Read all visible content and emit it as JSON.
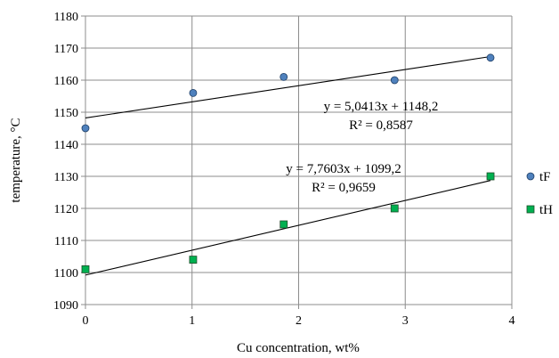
{
  "chart_data": {
    "type": "scatter",
    "title": "",
    "xlabel": "Cu concentration,  wt%",
    "ylabel": "temperature, °C",
    "xlim": [
      0,
      4
    ],
    "ylim": [
      1090,
      1180
    ],
    "x_ticks": [
      0,
      1,
      2,
      3,
      4
    ],
    "y_ticks": [
      1090,
      1100,
      1110,
      1120,
      1130,
      1140,
      1150,
      1160,
      1170,
      1180
    ],
    "x_tick_labels": [
      "0",
      "1",
      "2",
      "3",
      "4"
    ],
    "y_tick_labels": [
      "1090",
      "1100",
      "1110",
      "1120",
      "1130",
      "1140",
      "1150",
      "1160",
      "1170",
      "1180"
    ],
    "grid": true,
    "legend_position": "right",
    "series": [
      {
        "name": "tF",
        "marker": "circle",
        "color": "#4f81bd",
        "points": [
          {
            "x": 0,
            "y": 1145
          },
          {
            "x": 1.01,
            "y": 1156
          },
          {
            "x": 1.86,
            "y": 1161
          },
          {
            "x": 2.9,
            "y": 1160
          },
          {
            "x": 3.8,
            "y": 1167
          }
        ],
        "trendline": {
          "slope": 5.0413,
          "intercept": 1148.2,
          "equation": "y = 5,0413x + 1148,2",
          "r2": "R² = 0,8587"
        }
      },
      {
        "name": "tH",
        "marker": "square",
        "color": "#00b050",
        "points": [
          {
            "x": 0,
            "y": 1101
          },
          {
            "x": 1.01,
            "y": 1104
          },
          {
            "x": 1.86,
            "y": 1115
          },
          {
            "x": 2.9,
            "y": 1120
          },
          {
            "x": 3.8,
            "y": 1130
          }
        ],
        "trendline": {
          "slope": 7.7603,
          "intercept": 1099.2,
          "equation": "y = 7,7603x + 1099,2",
          "r2": "R² = 0,9659"
        }
      }
    ]
  }
}
